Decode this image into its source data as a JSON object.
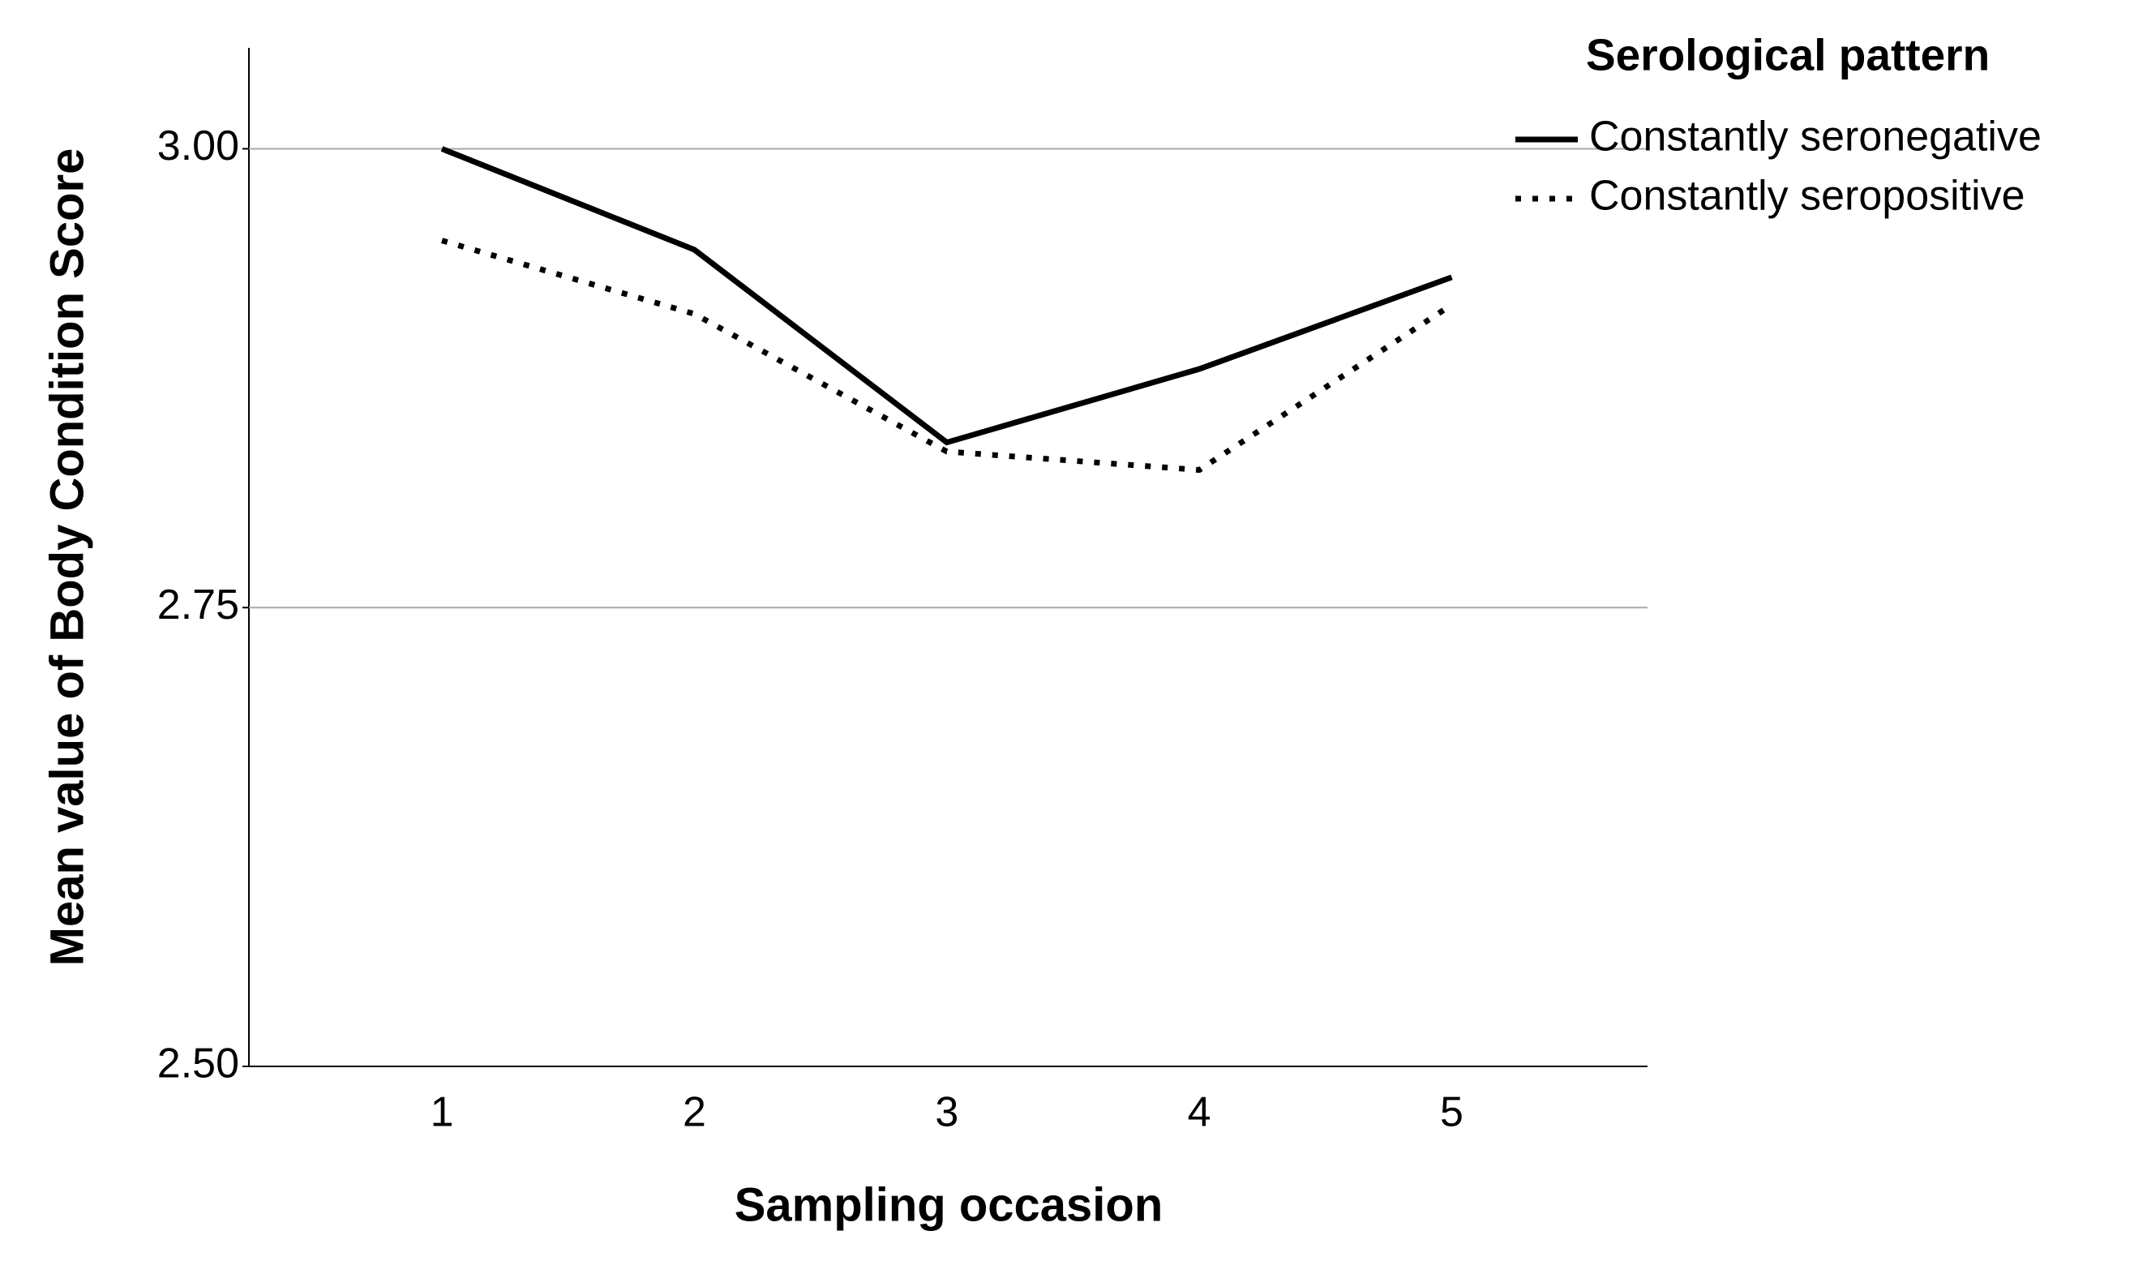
{
  "chart_data": {
    "type": "line",
    "x_label": "Sampling occasion",
    "y_label": "Mean value of Body Condition Score",
    "categories": [
      "1",
      "2",
      "3",
      "4",
      "5"
    ],
    "series": [
      {
        "name": "Constantly seronegative",
        "color": "#000000",
        "style": "solid",
        "values": [
          3.0,
          2.945,
          2.84,
          2.88,
          2.93
        ]
      },
      {
        "name": "Constantly seropositive",
        "color": "#000000",
        "style": "dotted",
        "values": [
          2.95,
          2.91,
          2.835,
          2.825,
          2.915
        ]
      }
    ],
    "ylim": [
      2.5,
      3.055
    ],
    "yticks": [
      {
        "value": 2.5,
        "label": "2.50"
      },
      {
        "value": 2.75,
        "label": "2.75"
      },
      {
        "value": 3.0,
        "label": "3.00"
      }
    ],
    "grid": true,
    "legend_title": "Serological pattern",
    "legend_position": "top-right"
  }
}
